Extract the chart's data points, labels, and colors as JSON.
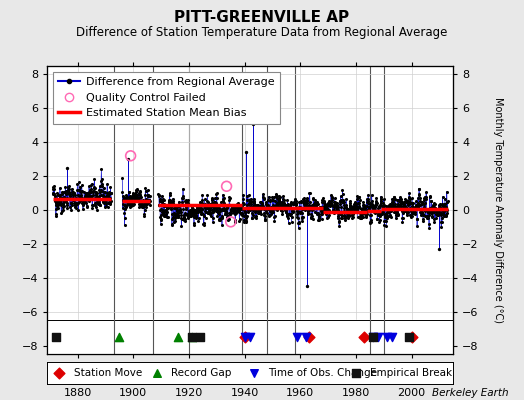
{
  "title": "PITT-GREENVILLE AP",
  "subtitle": "Difference of Station Temperature Data from Regional Average",
  "ylabel": "Monthly Temperature Anomaly Difference (°C)",
  "xlabel_ticks": [
    1880,
    1900,
    1920,
    1940,
    1960,
    1980,
    2000
  ],
  "ylim": [
    -8.5,
    8.5
  ],
  "xlim": [
    1869,
    2015
  ],
  "yticks": [
    -8,
    -6,
    -4,
    -2,
    0,
    2,
    4,
    6,
    8
  ],
  "bg_color": "#e8e8e8",
  "plot_bg_color": "#ffffff",
  "grid_color": "#d0d0d0",
  "line_color": "#0000cc",
  "bias_color": "#ff0000",
  "marker_color": "#000000",
  "qc_color": "#ff69b4",
  "station_move_color": "#dd0000",
  "record_gap_color": "#008000",
  "time_obs_color": "#0000dd",
  "empirical_break_color": "#111111",
  "vline_color": "#555555",
  "credit": "Berkeley Earth",
  "seed": 42,
  "data_segments": [
    {
      "start": 1871,
      "end": 1892,
      "mean": 0.75,
      "std": 0.75
    },
    {
      "start": 1896,
      "end": 1906,
      "mean": 0.55,
      "std": 0.75
    },
    {
      "start": 1909,
      "end": 2013,
      "mean": 0.05,
      "std": 0.65
    }
  ],
  "bias_segments": [
    {
      "start": 1871,
      "end": 1892,
      "value": 0.65
    },
    {
      "start": 1896,
      "end": 1906,
      "value": 0.55
    },
    {
      "start": 1909,
      "end": 1939,
      "value": 0.3
    },
    {
      "start": 1939,
      "end": 1968,
      "value": 0.1
    },
    {
      "start": 1968,
      "end": 1984,
      "value": -0.1
    },
    {
      "start": 1984,
      "end": 1989,
      "value": -0.05
    },
    {
      "start": 1989,
      "end": 2013,
      "value": 0.05
    }
  ],
  "vlines": [
    1893,
    1907,
    1920,
    1939,
    1948,
    1958,
    1985,
    1990
  ],
  "station_moves": [
    1940,
    1963,
    1983,
    2000
  ],
  "record_gaps": [
    1895,
    1916,
    1921
  ],
  "time_obs_changes": [
    1940,
    1942,
    1959,
    1962,
    1986,
    1988,
    1991,
    1993
  ],
  "empirical_breaks": [
    1872,
    1921,
    1924,
    1986,
    1999
  ],
  "qc_failed_main": [
    {
      "year": 1899.0,
      "value": 3.2
    },
    {
      "year": 1933.5,
      "value": 1.4
    },
    {
      "year": 1935.0,
      "value": -0.7
    }
  ],
  "spike_years_vals": [
    {
      "year": 1876,
      "value": 2.5
    },
    {
      "year": 1898,
      "value": 3.0
    },
    {
      "year": 1940.5,
      "value": 3.4
    },
    {
      "year": 1943,
      "value": 5.1
    },
    {
      "year": 1962.5,
      "value": -4.5
    },
    {
      "year": 2010,
      "value": -2.3
    }
  ],
  "bottom_markers_y": -7.5,
  "legend_fontsize": 8,
  "title_fontsize": 11,
  "subtitle_fontsize": 8.5
}
